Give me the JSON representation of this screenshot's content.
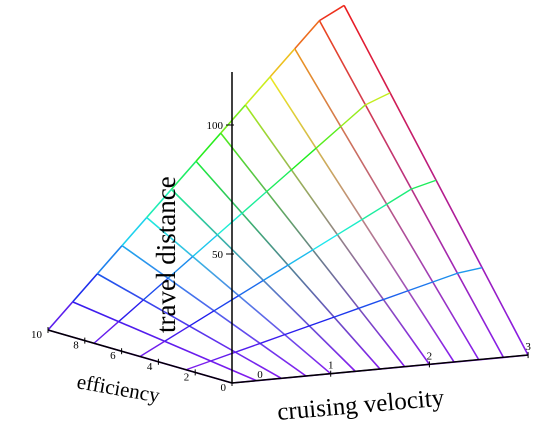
{
  "chart_data": {
    "type": "surface",
    "title": "",
    "xlabel": "cruising velocity",
    "ylabel": "efficiency",
    "zlabel": "travel distance",
    "x_ticks": [
      "0",
      "1",
      "2",
      "3"
    ],
    "y_ticks": [
      "0",
      "2",
      "4",
      "6",
      "8",
      "10"
    ],
    "z_ticks": [
      "50",
      "100"
    ],
    "xlim": [
      0,
      3
    ],
    "ylim": [
      0,
      10
    ],
    "zlim": [
      0,
      130
    ],
    "grid": false,
    "colormap": "rainbow by height (violet low → red high)",
    "surface": {
      "velocity": [
        0.0,
        0.25,
        0.5,
        0.75,
        1.0,
        1.25,
        1.5,
        1.75,
        2.0,
        2.25,
        2.5,
        2.75,
        3.0
      ],
      "efficiency": [
        0,
        10
      ],
      "travel_distance": [
        [
          0,
          0
        ],
        [
          0,
          10
        ],
        [
          0,
          20
        ],
        [
          0,
          30
        ],
        [
          0,
          40
        ],
        [
          0,
          50
        ],
        [
          0,
          60
        ],
        [
          0,
          70
        ],
        [
          0,
          80
        ],
        [
          0,
          90
        ],
        [
          0,
          100
        ],
        [
          0,
          110
        ],
        [
          0,
          115
        ]
      ]
    }
  }
}
